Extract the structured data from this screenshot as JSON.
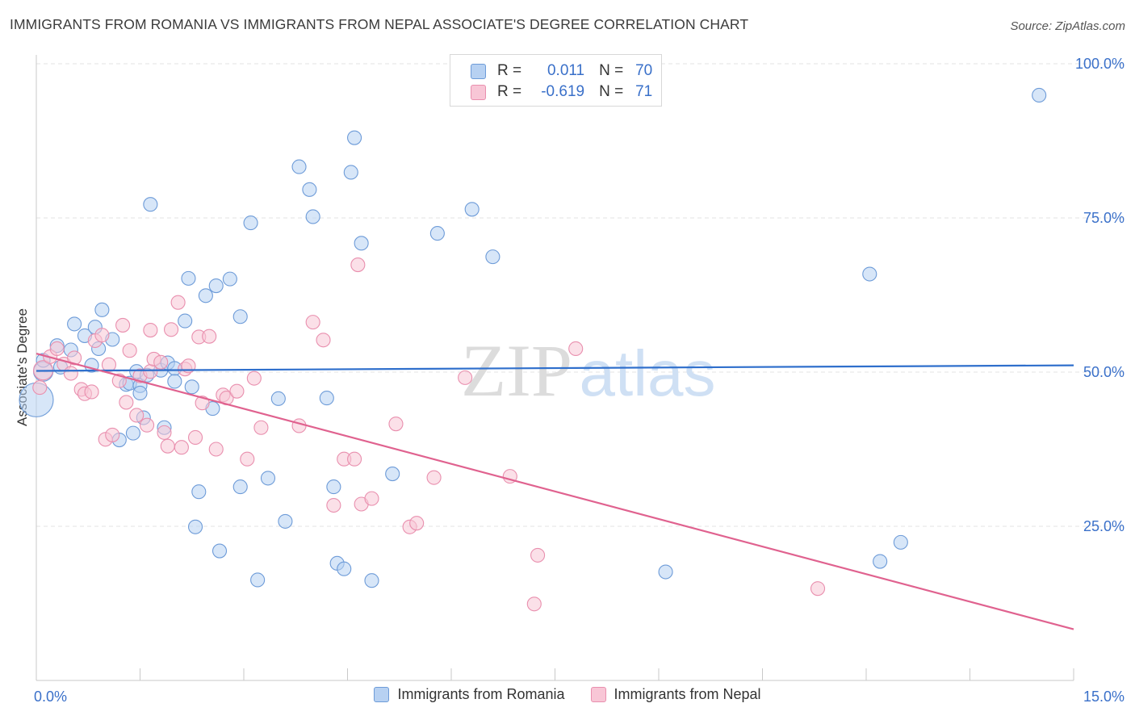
{
  "title": "IMMIGRANTS FROM ROMANIA VS IMMIGRANTS FROM NEPAL ASSOCIATE'S DEGREE CORRELATION CHART",
  "source": "Source: ZipAtlas.com",
  "watermark": {
    "zip": "ZIP",
    "atlas": "atlas"
  },
  "colors": {
    "romania_fill": "#b7d1f2",
    "romania_stroke": "#6d9bd8",
    "romania_line": "#2f6fcc",
    "nepal_fill": "#f8c6d6",
    "nepal_stroke": "#e98fae",
    "nepal_line": "#e0628f",
    "value_text": "#3a70c9",
    "grid": "#e3e3e3"
  },
  "legend": {
    "romania": {
      "r_label": "R =",
      "r_value": "0.011",
      "n_label": "N =",
      "n_value": "70"
    },
    "nepal": {
      "r_label": "R =",
      "r_value": "-0.619",
      "n_label": "N =",
      "n_value": "71"
    }
  },
  "chart_data": {
    "type": "scatter",
    "title": "IMMIGRANTS FROM ROMANIA VS IMMIGRANTS FROM NEPAL ASSOCIATE'S DEGREE CORRELATION CHART",
    "xlabel": "",
    "ylabel": "Associate's Degree",
    "xlim": [
      0,
      15
    ],
    "ylim": [
      0,
      105
    ],
    "x_tick_labels": [
      "0.0%",
      "15.0%"
    ],
    "y_ticks": [
      25,
      50,
      75,
      100
    ],
    "y_tick_labels": [
      "25.0%",
      "50.0%",
      "75.0%",
      "100.0%"
    ],
    "grid": true,
    "legend_position": "top-center",
    "series": [
      {
        "name": "Immigrants from Romania",
        "trend": {
          "x": [
            0,
            15
          ],
          "y": [
            50.2,
            51.1
          ]
        },
        "points": [
          {
            "x": 0.0,
            "y": 45.5,
            "size": "large"
          },
          {
            "x": 0.1,
            "y": 50.1,
            "size": "medium"
          },
          {
            "x": 0.1,
            "y": 51.9
          },
          {
            "x": 0.3,
            "y": 54.3
          },
          {
            "x": 0.35,
            "y": 50.8
          },
          {
            "x": 0.5,
            "y": 53.6
          },
          {
            "x": 0.55,
            "y": 57.8
          },
          {
            "x": 0.7,
            "y": 55.9
          },
          {
            "x": 0.8,
            "y": 51.1
          },
          {
            "x": 0.85,
            "y": 57.3
          },
          {
            "x": 0.9,
            "y": 53.8
          },
          {
            "x": 0.95,
            "y": 60.1
          },
          {
            "x": 1.1,
            "y": 55.3
          },
          {
            "x": 1.2,
            "y": 39.0
          },
          {
            "x": 1.3,
            "y": 48.0
          },
          {
            "x": 1.35,
            "y": 48.2
          },
          {
            "x": 1.4,
            "y": 40.1
          },
          {
            "x": 1.45,
            "y": 50.1
          },
          {
            "x": 1.5,
            "y": 47.8
          },
          {
            "x": 1.5,
            "y": 46.6
          },
          {
            "x": 1.55,
            "y": 42.6
          },
          {
            "x": 1.6,
            "y": 49.5
          },
          {
            "x": 1.65,
            "y": 77.2
          },
          {
            "x": 1.8,
            "y": 50.3
          },
          {
            "x": 1.85,
            "y": 41.0
          },
          {
            "x": 1.9,
            "y": 51.5
          },
          {
            "x": 2.0,
            "y": 50.6
          },
          {
            "x": 2.0,
            "y": 48.5
          },
          {
            "x": 2.15,
            "y": 58.3
          },
          {
            "x": 2.2,
            "y": 65.2
          },
          {
            "x": 2.25,
            "y": 47.6
          },
          {
            "x": 2.3,
            "y": 24.9
          },
          {
            "x": 2.35,
            "y": 30.6
          },
          {
            "x": 2.45,
            "y": 62.4
          },
          {
            "x": 2.55,
            "y": 44.1
          },
          {
            "x": 2.6,
            "y": 64.0
          },
          {
            "x": 2.65,
            "y": 21.0
          },
          {
            "x": 2.8,
            "y": 65.1
          },
          {
            "x": 2.95,
            "y": 59.0
          },
          {
            "x": 2.95,
            "y": 31.4
          },
          {
            "x": 3.1,
            "y": 74.2
          },
          {
            "x": 3.2,
            "y": 16.3
          },
          {
            "x": 3.35,
            "y": 32.8
          },
          {
            "x": 3.5,
            "y": 45.7
          },
          {
            "x": 3.6,
            "y": 25.8
          },
          {
            "x": 3.8,
            "y": 83.3
          },
          {
            "x": 3.95,
            "y": 79.6
          },
          {
            "x": 4.0,
            "y": 75.2
          },
          {
            "x": 4.2,
            "y": 45.8
          },
          {
            "x": 4.3,
            "y": 31.4
          },
          {
            "x": 4.35,
            "y": 19.0
          },
          {
            "x": 4.45,
            "y": 18.1
          },
          {
            "x": 4.55,
            "y": 82.4
          },
          {
            "x": 4.6,
            "y": 88.0
          },
          {
            "x": 4.7,
            "y": 70.9
          },
          {
            "x": 4.85,
            "y": 16.2
          },
          {
            "x": 5.15,
            "y": 33.5
          },
          {
            "x": 5.8,
            "y": 72.5
          },
          {
            "x": 6.3,
            "y": 76.4
          },
          {
            "x": 6.6,
            "y": 68.7
          },
          {
            "x": 9.1,
            "y": 17.6
          },
          {
            "x": 12.05,
            "y": 65.9
          },
          {
            "x": 12.2,
            "y": 19.3
          },
          {
            "x": 12.5,
            "y": 22.4
          },
          {
            "x": 14.5,
            "y": 94.9
          }
        ]
      },
      {
        "name": "Immigrants from Nepal",
        "trend": {
          "x": [
            0,
            15
          ],
          "y": [
            53.0,
            8.3
          ]
        },
        "points": [
          {
            "x": 0.05,
            "y": 47.5
          },
          {
            "x": 0.1,
            "y": 50.3,
            "size": "medium"
          },
          {
            "x": 0.2,
            "y": 52.5
          },
          {
            "x": 0.3,
            "y": 53.8
          },
          {
            "x": 0.4,
            "y": 51.3
          },
          {
            "x": 0.5,
            "y": 49.8
          },
          {
            "x": 0.55,
            "y": 52.3
          },
          {
            "x": 0.65,
            "y": 47.2
          },
          {
            "x": 0.7,
            "y": 46.5
          },
          {
            "x": 0.8,
            "y": 46.8
          },
          {
            "x": 0.85,
            "y": 55.1
          },
          {
            "x": 0.95,
            "y": 56.0
          },
          {
            "x": 1.0,
            "y": 39.1
          },
          {
            "x": 1.1,
            "y": 39.8
          },
          {
            "x": 1.05,
            "y": 51.2
          },
          {
            "x": 1.2,
            "y": 48.6
          },
          {
            "x": 1.25,
            "y": 57.6
          },
          {
            "x": 1.3,
            "y": 45.1
          },
          {
            "x": 1.35,
            "y": 53.5
          },
          {
            "x": 1.45,
            "y": 43.0
          },
          {
            "x": 1.5,
            "y": 49.4
          },
          {
            "x": 1.6,
            "y": 41.4
          },
          {
            "x": 1.65,
            "y": 50.1
          },
          {
            "x": 1.65,
            "y": 56.8
          },
          {
            "x": 1.7,
            "y": 52.1
          },
          {
            "x": 1.8,
            "y": 51.6
          },
          {
            "x": 1.85,
            "y": 40.2
          },
          {
            "x": 1.9,
            "y": 38.0
          },
          {
            "x": 1.95,
            "y": 56.9
          },
          {
            "x": 2.05,
            "y": 61.3
          },
          {
            "x": 2.1,
            "y": 37.8
          },
          {
            "x": 2.15,
            "y": 50.5
          },
          {
            "x": 2.2,
            "y": 51.0
          },
          {
            "x": 2.3,
            "y": 39.4
          },
          {
            "x": 2.35,
            "y": 55.7
          },
          {
            "x": 2.4,
            "y": 45.0
          },
          {
            "x": 2.5,
            "y": 55.8
          },
          {
            "x": 2.6,
            "y": 37.5
          },
          {
            "x": 2.7,
            "y": 46.3
          },
          {
            "x": 2.75,
            "y": 45.8
          },
          {
            "x": 2.9,
            "y": 46.9
          },
          {
            "x": 3.05,
            "y": 35.9
          },
          {
            "x": 3.15,
            "y": 49.0
          },
          {
            "x": 3.25,
            "y": 41.0
          },
          {
            "x": 3.8,
            "y": 41.3
          },
          {
            "x": 4.0,
            "y": 58.1
          },
          {
            "x": 4.15,
            "y": 55.2
          },
          {
            "x": 4.3,
            "y": 28.4
          },
          {
            "x": 4.45,
            "y": 35.9
          },
          {
            "x": 4.6,
            "y": 35.9
          },
          {
            "x": 4.65,
            "y": 67.4
          },
          {
            "x": 4.7,
            "y": 28.6
          },
          {
            "x": 4.85,
            "y": 29.5
          },
          {
            "x": 5.2,
            "y": 41.6
          },
          {
            "x": 5.4,
            "y": 24.9
          },
          {
            "x": 5.5,
            "y": 25.5
          },
          {
            "x": 5.75,
            "y": 32.9
          },
          {
            "x": 6.2,
            "y": 49.1
          },
          {
            "x": 6.85,
            "y": 33.1
          },
          {
            "x": 7.2,
            "y": 12.4
          },
          {
            "x": 7.25,
            "y": 20.3
          },
          {
            "x": 7.8,
            "y": 53.8
          },
          {
            "x": 11.3,
            "y": 14.9
          }
        ]
      }
    ]
  }
}
